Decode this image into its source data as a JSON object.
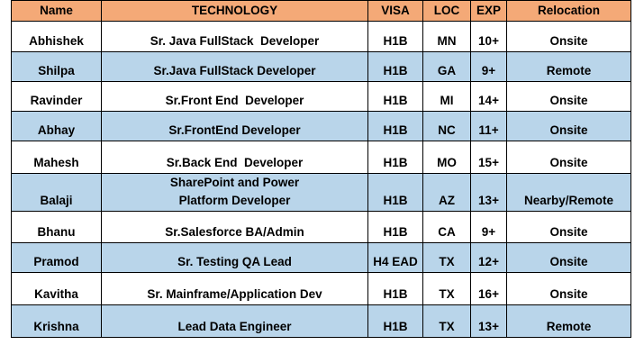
{
  "headers": {
    "name": "Name",
    "technology": "TECHNOLOGY",
    "visa": "VISA",
    "loc": "LOC",
    "exp": "EXP",
    "relocation": "Relocation"
  },
  "colors": {
    "header_background": "#f4a977",
    "row_alt_background": "#b9d5ea",
    "row_background": "#ffffff",
    "border": "#000000"
  },
  "rows": [
    {
      "name": "Abhishek",
      "technology": "Sr. Java FullStack  Developer",
      "visa": "H1B",
      "loc": "MN",
      "exp": "10+",
      "relocation": "Onsite"
    },
    {
      "name": "Shilpa",
      "technology": "Sr.Java FullStack Developer",
      "visa": "H1B",
      "loc": "GA",
      "exp": "9+",
      "relocation": "Remote"
    },
    {
      "name": "Ravinder",
      "technology": "Sr.Front End  Developer",
      "visa": "H1B",
      "loc": "MI",
      "exp": "14+",
      "relocation": "Onsite"
    },
    {
      "name": "Abhay",
      "technology": "Sr.FrontEnd Developer",
      "visa": "H1B",
      "loc": "NC",
      "exp": "11+",
      "relocation": "Onsite"
    },
    {
      "name": "Mahesh",
      "technology": "Sr.Back End  Developer",
      "visa": "H1B",
      "loc": "MO",
      "exp": "15+",
      "relocation": "Onsite"
    },
    {
      "name": "Balaji",
      "technology": "SharePoint and Power Platform Developer",
      "visa": "H1B",
      "loc": "AZ",
      "exp": "13+",
      "relocation": "Nearby/Remote"
    },
    {
      "name": "Bhanu",
      "technology": "Sr.Salesforce BA/Admin",
      "visa": "H1B",
      "loc": "CA",
      "exp": "9+",
      "relocation": "Onsite"
    },
    {
      "name": "Pramod",
      "technology": "Sr. Testing QA Lead",
      "visa": "H4 EAD",
      "loc": "TX",
      "exp": "12+",
      "relocation": "Onsite"
    },
    {
      "name": "Kavitha",
      "technology": "Sr. Mainframe/Application Dev",
      "visa": "H1B",
      "loc": "TX",
      "exp": "16+",
      "relocation": "Onsite"
    },
    {
      "name": "Krishna",
      "technology": "Lead Data Engineer",
      "visa": "H1B",
      "loc": "TX",
      "exp": "13+",
      "relocation": "Remote"
    }
  ]
}
